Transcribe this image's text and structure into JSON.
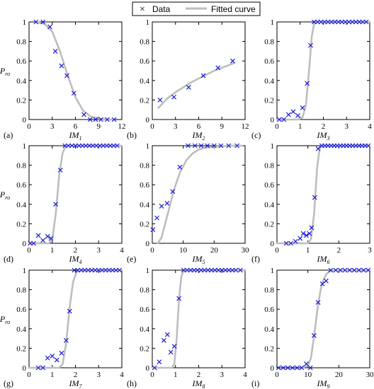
{
  "legend": {
    "data_label": "Data",
    "fit_label": "Fitted curve",
    "data_color": "#1a1ad6",
    "fit_color": "#bdbdbd"
  },
  "ylabel_main": "P",
  "ylabel_sub": "ro",
  "chart_data": [
    {
      "type": "scatter",
      "panel": "(a)",
      "xlabel_main": "IM",
      "xlabel_sub": "1",
      "xlim": [
        0,
        12
      ],
      "ylim": [
        0,
        1
      ],
      "xticks": [
        "0",
        "3",
        "6",
        "9",
        "12"
      ],
      "xtick_values": [
        0,
        3,
        6,
        9,
        12
      ],
      "yticks": [
        "0",
        "0.2",
        "0.4",
        "0.6",
        "0.8",
        "1"
      ],
      "ytick_values": [
        0,
        0.2,
        0.4,
        0.6,
        0.8,
        1
      ],
      "show_ylabel": true,
      "data": [
        [
          0.9,
          1.0
        ],
        [
          1.8,
          1.0
        ],
        [
          2.7,
          0.95
        ],
        [
          3.4,
          0.7
        ],
        [
          4.2,
          0.55
        ],
        [
          4.9,
          0.45
        ],
        [
          5.8,
          0.27
        ],
        [
          7.1,
          0.05
        ],
        [
          7.9,
          0.0
        ],
        [
          8.6,
          0.0
        ],
        [
          9.3,
          0.0
        ],
        [
          10.1,
          0.0
        ],
        [
          11.0,
          0.0
        ]
      ],
      "fit": [
        [
          0.9,
          1.0
        ],
        [
          2.0,
          0.98
        ],
        [
          3.0,
          0.9
        ],
        [
          4.0,
          0.7
        ],
        [
          5.0,
          0.45
        ],
        [
          6.0,
          0.23
        ],
        [
          7.0,
          0.09
        ],
        [
          8.0,
          0.03
        ],
        [
          9.0,
          0.01
        ],
        [
          10.0,
          0.0
        ],
        [
          11.0,
          0.0
        ]
      ]
    },
    {
      "type": "scatter",
      "panel": "(b)",
      "xlabel_main": "IM",
      "xlabel_sub": "2",
      "xlim": [
        0,
        12
      ],
      "ylim": [
        0,
        1
      ],
      "xticks": [
        "0",
        "3",
        "6",
        "9",
        "12"
      ],
      "xtick_values": [
        0,
        3,
        6,
        9,
        12
      ],
      "yticks": [
        "0",
        "0.2",
        "0.4",
        "0.6",
        "0.8",
        "1"
      ],
      "ytick_values": [
        0,
        0.2,
        0.4,
        0.6,
        0.8,
        1
      ],
      "show_ylabel": false,
      "data": [
        [
          1.0,
          0.2
        ],
        [
          2.8,
          0.23
        ],
        [
          4.7,
          0.33
        ],
        [
          6.6,
          0.45
        ],
        [
          8.5,
          0.53
        ],
        [
          10.4,
          0.6
        ]
      ],
      "fit": [
        [
          0.8,
          0.12
        ],
        [
          2.0,
          0.22
        ],
        [
          3.0,
          0.28
        ],
        [
          4.0,
          0.33
        ],
        [
          5.0,
          0.38
        ],
        [
          6.0,
          0.42
        ],
        [
          7.0,
          0.46
        ],
        [
          8.0,
          0.5
        ],
        [
          9.0,
          0.53
        ],
        [
          10.0,
          0.56
        ],
        [
          10.6,
          0.58
        ]
      ]
    },
    {
      "type": "scatter",
      "panel": "(c)",
      "xlabel_main": "IM",
      "xlabel_sub": "3",
      "xlim": [
        0,
        4
      ],
      "ylim": [
        0,
        1
      ],
      "xticks": [
        "0",
        "1",
        "2",
        "3",
        "4"
      ],
      "xtick_values": [
        0,
        1,
        2,
        3,
        4
      ],
      "yticks": [
        "0",
        "0.2",
        "0.4",
        "0.6",
        "0.8",
        "1"
      ],
      "ytick_values": [
        0,
        0.2,
        0.4,
        0.6,
        0.8,
        1
      ],
      "show_ylabel": false,
      "data": [
        [
          0.1,
          0.0
        ],
        [
          0.3,
          0.0
        ],
        [
          0.5,
          0.05
        ],
        [
          0.7,
          0.08
        ],
        [
          0.9,
          0.04
        ],
        [
          1.1,
          0.12
        ],
        [
          1.3,
          0.37
        ],
        [
          1.45,
          0.76
        ],
        [
          1.6,
          1.0
        ],
        [
          1.75,
          1.0
        ],
        [
          1.9,
          1.0
        ],
        [
          2.05,
          1.0
        ],
        [
          2.2,
          1.0
        ],
        [
          2.35,
          1.0
        ],
        [
          2.5,
          1.0
        ],
        [
          2.65,
          1.0
        ],
        [
          2.8,
          1.0
        ],
        [
          2.95,
          1.0
        ],
        [
          3.1,
          1.0
        ],
        [
          3.25,
          1.0
        ],
        [
          3.4,
          1.0
        ],
        [
          3.55,
          1.0
        ],
        [
          3.7,
          1.0
        ],
        [
          3.85,
          1.0
        ]
      ],
      "fit": [
        [
          0.0,
          0.0
        ],
        [
          0.9,
          0.0
        ],
        [
          1.1,
          0.02
        ],
        [
          1.25,
          0.15
        ],
        [
          1.4,
          0.55
        ],
        [
          1.5,
          0.85
        ],
        [
          1.6,
          0.98
        ],
        [
          1.7,
          1.0
        ],
        [
          4.0,
          1.0
        ]
      ]
    },
    {
      "type": "scatter",
      "panel": "(d)",
      "xlabel_main": "IM",
      "xlabel_sub": "4",
      "xlim": [
        0,
        4
      ],
      "ylim": [
        0,
        1
      ],
      "xticks": [
        "0",
        "1",
        "2",
        "3",
        "4"
      ],
      "xtick_values": [
        0,
        1,
        2,
        3,
        4
      ],
      "yticks": [
        "0",
        "0.2",
        "0.4",
        "0.6",
        "0.8",
        "1"
      ],
      "ytick_values": [
        0,
        0.2,
        0.4,
        0.6,
        0.8,
        1
      ],
      "show_ylabel": true,
      "data": [
        [
          0.05,
          0.0
        ],
        [
          0.2,
          0.0
        ],
        [
          0.4,
          0.08
        ],
        [
          0.6,
          0.03
        ],
        [
          0.8,
          0.07
        ],
        [
          0.95,
          0.05
        ],
        [
          1.15,
          0.4
        ],
        [
          1.35,
          0.75
        ],
        [
          1.55,
          1.0
        ],
        [
          1.7,
          1.0
        ],
        [
          1.85,
          1.0
        ],
        [
          2.0,
          1.0
        ],
        [
          2.15,
          1.0
        ],
        [
          2.3,
          1.0
        ],
        [
          2.45,
          1.0
        ],
        [
          2.6,
          1.0
        ],
        [
          2.75,
          1.0
        ],
        [
          2.9,
          1.0
        ],
        [
          3.05,
          1.0
        ],
        [
          3.2,
          1.0
        ],
        [
          3.35,
          1.0
        ],
        [
          3.5,
          1.0
        ],
        [
          3.65,
          1.0
        ],
        [
          3.8,
          1.0
        ]
      ],
      "fit": [
        [
          0.0,
          0.0
        ],
        [
          0.85,
          0.0
        ],
        [
          1.0,
          0.04
        ],
        [
          1.15,
          0.3
        ],
        [
          1.3,
          0.7
        ],
        [
          1.45,
          0.93
        ],
        [
          1.6,
          1.0
        ],
        [
          4.0,
          1.0
        ]
      ]
    },
    {
      "type": "scatter",
      "panel": "(e)",
      "xlabel_main": "IM",
      "xlabel_sub": "5",
      "xlim": [
        0,
        30
      ],
      "ylim": [
        0,
        1
      ],
      "xticks": [
        "0",
        "10",
        "20",
        "30"
      ],
      "xtick_values": [
        0,
        10,
        20,
        30
      ],
      "yticks": [
        "0",
        "0.2",
        "0.4",
        "0.6",
        "0.8",
        "1"
      ],
      "ytick_values": [
        0,
        0.2,
        0.4,
        0.6,
        0.8,
        1
      ],
      "show_ylabel": false,
      "data": [
        [
          0.2,
          0.14
        ],
        [
          1.5,
          0.26
        ],
        [
          3.0,
          0.38
        ],
        [
          4.8,
          0.41
        ],
        [
          6.6,
          0.53
        ],
        [
          8.9,
          0.78
        ],
        [
          11.6,
          1.0
        ],
        [
          13.8,
          1.0
        ],
        [
          15.8,
          1.0
        ],
        [
          17.8,
          1.0
        ],
        [
          20.0,
          1.0
        ],
        [
          22.2,
          1.0
        ],
        [
          24.7,
          1.0
        ],
        [
          27.4,
          1.0
        ]
      ],
      "fit": [
        [
          1.8,
          0.0
        ],
        [
          3.0,
          0.06
        ],
        [
          5.0,
          0.3
        ],
        [
          7.0,
          0.55
        ],
        [
          9.0,
          0.73
        ],
        [
          11.0,
          0.85
        ],
        [
          13.0,
          0.92
        ],
        [
          15.0,
          0.96
        ],
        [
          17.0,
          0.98
        ],
        [
          20.0,
          0.99
        ],
        [
          25.0,
          1.0
        ],
        [
          29.0,
          1.0
        ]
      ]
    },
    {
      "type": "scatter",
      "panel": "(f)",
      "xlabel_main": "IM",
      "xlabel_sub": "6",
      "xlim": [
        0,
        3
      ],
      "ylim": [
        0,
        1
      ],
      "xticks": [
        "0",
        "1",
        "2",
        "3"
      ],
      "xtick_values": [
        0,
        1,
        2,
        3
      ],
      "yticks": [
        "0",
        "0.2",
        "0.4",
        "0.6",
        "0.8",
        "1"
      ],
      "ytick_values": [
        0,
        0.2,
        0.4,
        0.6,
        0.8,
        1
      ],
      "show_ylabel": false,
      "data": [
        [
          0.3,
          0.0
        ],
        [
          0.45,
          0.0
        ],
        [
          0.6,
          0.02
        ],
        [
          0.75,
          0.05
        ],
        [
          0.85,
          0.1
        ],
        [
          0.95,
          0.08
        ],
        [
          1.05,
          0.1
        ],
        [
          1.12,
          0.16
        ],
        [
          1.22,
          0.47
        ],
        [
          1.33,
          0.97
        ],
        [
          1.45,
          1.0
        ],
        [
          1.55,
          1.0
        ],
        [
          1.65,
          1.0
        ],
        [
          1.75,
          1.0
        ],
        [
          1.85,
          1.0
        ],
        [
          1.95,
          1.0
        ],
        [
          2.05,
          1.0
        ],
        [
          2.15,
          1.0
        ],
        [
          2.25,
          1.0
        ],
        [
          2.35,
          1.0
        ],
        [
          2.45,
          1.0
        ],
        [
          2.55,
          1.0
        ],
        [
          2.65,
          1.0
        ],
        [
          2.75,
          1.0
        ],
        [
          2.85,
          1.0
        ],
        [
          2.95,
          1.0
        ]
      ],
      "fit": [
        [
          0.0,
          0.0
        ],
        [
          1.0,
          0.0
        ],
        [
          1.1,
          0.04
        ],
        [
          1.2,
          0.3
        ],
        [
          1.3,
          0.78
        ],
        [
          1.38,
          0.97
        ],
        [
          1.45,
          1.0
        ],
        [
          3.0,
          1.0
        ]
      ]
    },
    {
      "type": "scatter",
      "panel": "(g)",
      "xlabel_main": "IM",
      "xlabel_sub": "7",
      "xlim": [
        0,
        4
      ],
      "ylim": [
        0,
        1
      ],
      "xticks": [
        "0",
        "1",
        "2",
        "3",
        "4"
      ],
      "xtick_values": [
        0,
        1,
        2,
        3,
        4
      ],
      "yticks": [
        "0",
        "0.2",
        "0.4",
        "0.6",
        "0.8",
        "1"
      ],
      "ytick_values": [
        0,
        0.2,
        0.4,
        0.6,
        0.8,
        1
      ],
      "show_ylabel": true,
      "data": [
        [
          0.4,
          0.0
        ],
        [
          0.6,
          0.0
        ],
        [
          0.8,
          0.1
        ],
        [
          1.0,
          0.12
        ],
        [
          1.2,
          0.08
        ],
        [
          1.4,
          0.15
        ],
        [
          1.6,
          0.28
        ],
        [
          1.75,
          0.58
        ],
        [
          1.95,
          1.0
        ],
        [
          2.1,
          1.0
        ],
        [
          2.25,
          1.0
        ],
        [
          2.4,
          1.0
        ],
        [
          2.55,
          1.0
        ],
        [
          2.7,
          1.0
        ],
        [
          2.85,
          1.0
        ],
        [
          3.0,
          1.0
        ],
        [
          3.15,
          1.0
        ],
        [
          3.3,
          1.0
        ],
        [
          3.45,
          1.0
        ],
        [
          3.6,
          1.0
        ],
        [
          3.75,
          1.0
        ],
        [
          3.9,
          1.0
        ]
      ],
      "fit": [
        [
          0.0,
          0.0
        ],
        [
          1.3,
          0.0
        ],
        [
          1.45,
          0.04
        ],
        [
          1.6,
          0.25
        ],
        [
          1.75,
          0.62
        ],
        [
          1.9,
          0.88
        ],
        [
          2.05,
          0.98
        ],
        [
          2.2,
          1.0
        ],
        [
          4.0,
          1.0
        ]
      ]
    },
    {
      "type": "scatter",
      "panel": "(h)",
      "xlabel_main": "IM",
      "xlabel_sub": "8",
      "xlim": [
        0,
        4
      ],
      "ylim": [
        0,
        1
      ],
      "xticks": [
        "0",
        "1",
        "2",
        "3",
        "4"
      ],
      "xtick_values": [
        0,
        1,
        2,
        3,
        4
      ],
      "yticks": [
        "0",
        "0.2",
        "0.4",
        "0.6",
        "0.8",
        "1"
      ],
      "ytick_values": [
        0,
        0.2,
        0.4,
        0.6,
        0.8,
        1
      ],
      "show_ylabel": false,
      "data": [
        [
          0.1,
          0.0
        ],
        [
          0.3,
          0.06
        ],
        [
          0.5,
          0.28
        ],
        [
          0.65,
          0.34
        ],
        [
          0.8,
          0.16
        ],
        [
          0.95,
          0.22
        ],
        [
          1.15,
          0.71
        ],
        [
          1.35,
          1.0
        ],
        [
          1.5,
          1.0
        ],
        [
          1.65,
          1.0
        ],
        [
          1.8,
          1.0
        ],
        [
          1.95,
          1.0
        ],
        [
          2.1,
          1.0
        ],
        [
          2.25,
          1.0
        ],
        [
          2.4,
          1.0
        ],
        [
          2.55,
          1.0
        ],
        [
          2.7,
          1.0
        ],
        [
          2.85,
          1.0
        ],
        [
          3.0,
          1.0
        ],
        [
          3.15,
          1.0
        ],
        [
          3.3,
          1.0
        ],
        [
          3.45,
          1.0
        ],
        [
          3.6,
          1.0
        ],
        [
          3.8,
          1.0
        ]
      ],
      "fit": [
        [
          0.0,
          0.0
        ],
        [
          0.85,
          0.0
        ],
        [
          0.95,
          0.04
        ],
        [
          1.05,
          0.3
        ],
        [
          1.15,
          0.7
        ],
        [
          1.25,
          0.93
        ],
        [
          1.35,
          1.0
        ],
        [
          4.0,
          1.0
        ]
      ]
    },
    {
      "type": "scatter",
      "panel": "(i)",
      "xlabel_main": "IM",
      "xlabel_sub": "9",
      "xlim": [
        0,
        30
      ],
      "ylim": [
        0,
        1
      ],
      "xticks": [
        "0",
        "10",
        "20",
        "30"
      ],
      "xtick_values": [
        0,
        10,
        20,
        30
      ],
      "yticks": [
        "0",
        "0.2",
        "0.4",
        "0.6",
        "0.8",
        "1"
      ],
      "ytick_values": [
        0,
        0.2,
        0.4,
        0.6,
        0.8,
        1
      ],
      "show_ylabel": false,
      "data": [
        [
          0.5,
          0.0
        ],
        [
          2.0,
          0.0
        ],
        [
          3.5,
          0.0
        ],
        [
          5.0,
          0.0
        ],
        [
          6.5,
          0.0
        ],
        [
          8.0,
          0.0
        ],
        [
          9.5,
          0.04
        ],
        [
          10.8,
          0.0
        ],
        [
          12.0,
          0.33
        ],
        [
          13.3,
          0.67
        ],
        [
          14.7,
          0.86
        ],
        [
          15.9,
          0.89
        ],
        [
          17.4,
          1.0
        ],
        [
          19.0,
          1.0
        ],
        [
          20.5,
          1.0
        ],
        [
          22.0,
          1.0
        ],
        [
          23.5,
          1.0
        ],
        [
          25.0,
          1.0
        ],
        [
          26.5,
          1.0
        ],
        [
          28.0,
          1.0
        ],
        [
          29.5,
          1.0
        ]
      ],
      "fit": [
        [
          8.0,
          0.0
        ],
        [
          10.0,
          0.02
        ],
        [
          11.0,
          0.1
        ],
        [
          12.0,
          0.32
        ],
        [
          13.0,
          0.58
        ],
        [
          14.0,
          0.78
        ],
        [
          15.0,
          0.9
        ],
        [
          16.0,
          0.96
        ],
        [
          17.0,
          0.99
        ],
        [
          18.5,
          1.0
        ],
        [
          30.0,
          1.0
        ]
      ]
    }
  ]
}
